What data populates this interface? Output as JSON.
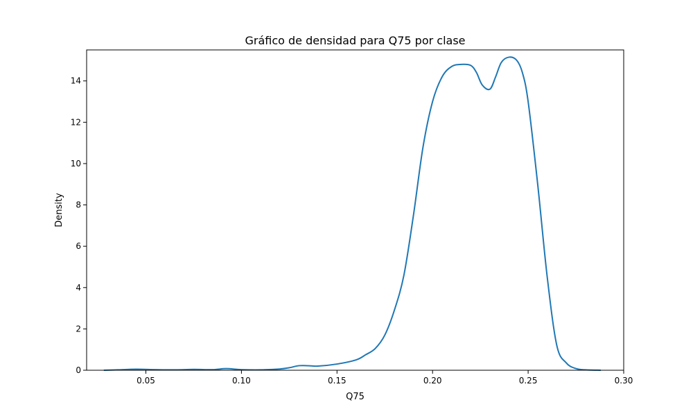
{
  "chart_data": {
    "type": "line",
    "title": "Gráfico de densidad para Q75 por clase",
    "xlabel": "Q75",
    "ylabel": "Density",
    "xlim": [
      0.019,
      0.3
    ],
    "ylim": [
      0,
      15.5
    ],
    "xticks": [
      {
        "value": 0.05,
        "label": "0.05"
      },
      {
        "value": 0.1,
        "label": "0.10"
      },
      {
        "value": 0.15,
        "label": "0.15"
      },
      {
        "value": 0.2,
        "label": "0.20"
      },
      {
        "value": 0.25,
        "label": "0.25"
      },
      {
        "value": 0.3,
        "label": "0.30"
      }
    ],
    "yticks": [
      {
        "value": 0,
        "label": "0"
      },
      {
        "value": 2,
        "label": "2"
      },
      {
        "value": 4,
        "label": "4"
      },
      {
        "value": 6,
        "label": "6"
      },
      {
        "value": 8,
        "label": "8"
      },
      {
        "value": 10,
        "label": "10"
      },
      {
        "value": 12,
        "label": "12"
      },
      {
        "value": 14,
        "label": "14"
      }
    ],
    "grid": false,
    "series": [
      {
        "color": "#1f77b4",
        "x": [
          0.028,
          0.035,
          0.045,
          0.055,
          0.065,
          0.075,
          0.085,
          0.092,
          0.1,
          0.11,
          0.12,
          0.125,
          0.13,
          0.135,
          0.14,
          0.15,
          0.16,
          0.165,
          0.17,
          0.175,
          0.18,
          0.185,
          0.19,
          0.195,
          0.2,
          0.205,
          0.21,
          0.215,
          0.22,
          0.223,
          0.226,
          0.23,
          0.233,
          0.236,
          0.24,
          0.244,
          0.247,
          0.25,
          0.255,
          0.26,
          0.265,
          0.27,
          0.275,
          0.28,
          0.288
        ],
        "y": [
          0.0,
          0.02,
          0.05,
          0.03,
          0.02,
          0.04,
          0.03,
          0.08,
          0.03,
          0.02,
          0.06,
          0.12,
          0.22,
          0.22,
          0.2,
          0.3,
          0.5,
          0.75,
          1.05,
          1.7,
          2.9,
          4.6,
          7.5,
          10.8,
          13.0,
          14.2,
          14.7,
          14.8,
          14.75,
          14.4,
          13.8,
          13.6,
          14.2,
          14.9,
          15.15,
          15.0,
          14.4,
          13.0,
          9.0,
          4.5,
          1.2,
          0.35,
          0.08,
          0.02,
          0.0
        ]
      }
    ]
  }
}
